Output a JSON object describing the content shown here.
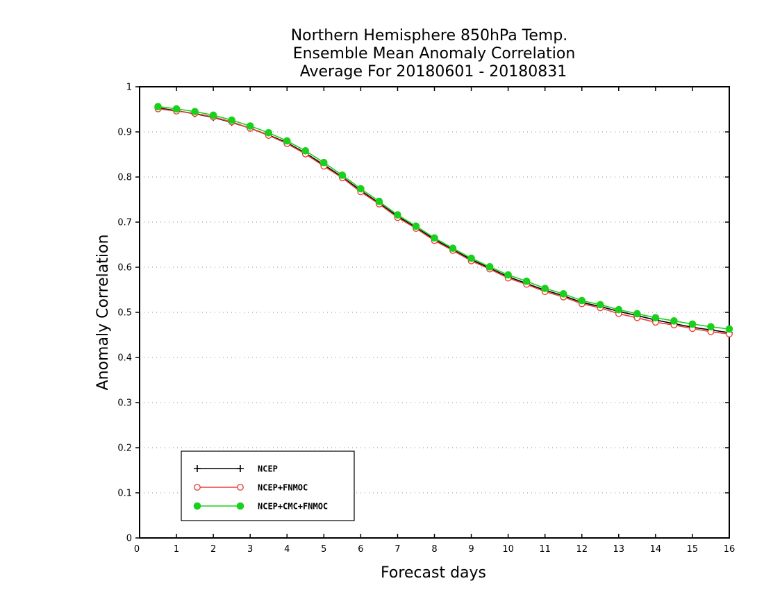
{
  "chart_data": {
    "type": "line",
    "title": [
      "Northern Hemisphere 850hPa Temp.",
      "Ensemble Mean Anomaly Correlation",
      "Average For 20180601 - 20180831"
    ],
    "xlabel": "Forecast days",
    "ylabel": "Anomaly Correlation",
    "xlim": [
      0,
      16
    ],
    "ylim": [
      0,
      1
    ],
    "xticks": [
      0,
      1,
      2,
      3,
      4,
      5,
      6,
      7,
      8,
      9,
      10,
      11,
      12,
      13,
      14,
      15,
      16
    ],
    "yticks": [
      0,
      0.1,
      0.2,
      0.3,
      0.4,
      0.5,
      0.6,
      0.7,
      0.8,
      0.9,
      1
    ],
    "grid": "horizontal dotted",
    "legend_position": "bottom-left",
    "x": [
      0.5,
      1,
      1.5,
      2,
      2.5,
      3,
      3.5,
      4,
      4.5,
      5,
      5.5,
      6,
      6.5,
      7,
      7.5,
      8,
      8.5,
      9,
      9.5,
      10,
      10.5,
      11,
      11.5,
      12,
      12.5,
      13,
      13.5,
      14,
      14.5,
      15,
      15.5,
      16
    ],
    "series": [
      {
        "name": "NCEP",
        "color": "#000000",
        "marker": "plus",
        "values": [
          0.953,
          0.947,
          0.94,
          0.932,
          0.921,
          0.908,
          0.893,
          0.876,
          0.853,
          0.827,
          0.8,
          0.77,
          0.742,
          0.713,
          0.688,
          0.662,
          0.639,
          0.617,
          0.598,
          0.579,
          0.564,
          0.549,
          0.537,
          0.522,
          0.513,
          0.502,
          0.493,
          0.483,
          0.475,
          0.467,
          0.461,
          0.455
        ]
      },
      {
        "name": "NCEP+FNMOC",
        "color": "#e8403a",
        "marker": "open-circle",
        "values": [
          0.951,
          0.946,
          0.941,
          0.933,
          0.922,
          0.908,
          0.892,
          0.874,
          0.851,
          0.824,
          0.798,
          0.767,
          0.74,
          0.71,
          0.686,
          0.659,
          0.637,
          0.614,
          0.596,
          0.576,
          0.562,
          0.546,
          0.534,
          0.519,
          0.51,
          0.497,
          0.488,
          0.478,
          0.472,
          0.464,
          0.457,
          0.452
        ]
      },
      {
        "name": "NCEP+CMC+FNMOC",
        "color": "#19d11c",
        "marker": "filled-circle",
        "values": [
          0.956,
          0.951,
          0.945,
          0.937,
          0.926,
          0.913,
          0.898,
          0.88,
          0.858,
          0.832,
          0.804,
          0.774,
          0.746,
          0.716,
          0.691,
          0.665,
          0.642,
          0.62,
          0.601,
          0.583,
          0.569,
          0.553,
          0.541,
          0.526,
          0.517,
          0.506,
          0.497,
          0.488,
          0.481,
          0.474,
          0.468,
          0.463
        ]
      }
    ]
  }
}
